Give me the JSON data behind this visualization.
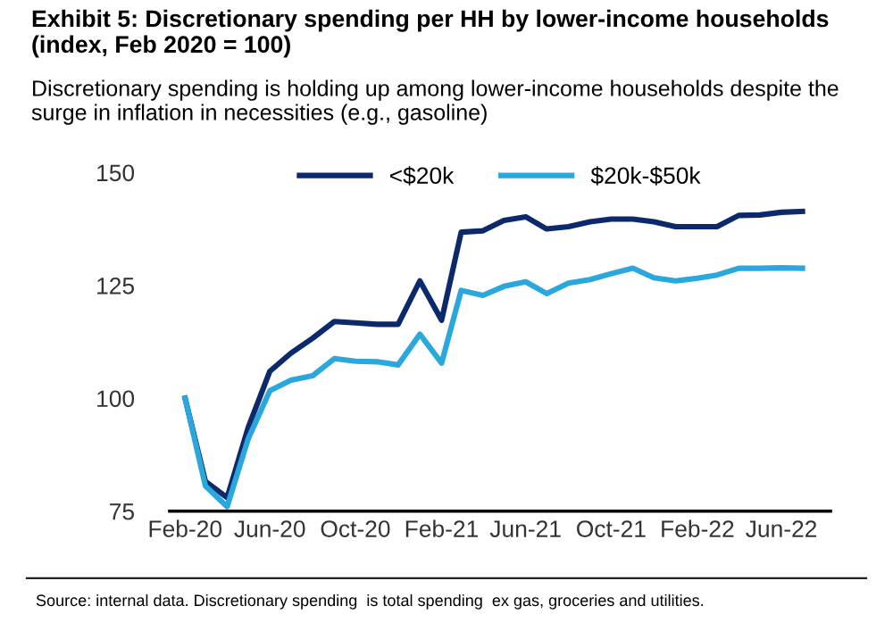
{
  "chart_data": {
    "type": "line",
    "title": "Exhibit 5: Discretionary spending per HH by lower-income households (index, Feb 2020 = 100)",
    "subtitle": "Discretionary spending is holding up among lower-income households despite the surge in inflation in necessities (e.g., gasoline)",
    "annotations": [
      "Source: internal data. Discretionary spending  is total spending  ex gas, groceries and utilities."
    ],
    "x": [
      "2020-02",
      "2020-03",
      "2020-04",
      "2020-05",
      "2020-06",
      "2020-07",
      "2020-08",
      "2020-09",
      "2020-10",
      "2020-11",
      "2020-12",
      "2021-01",
      "2021-02",
      "2021-03",
      "2021-04",
      "2021-05",
      "2021-06",
      "2021-07",
      "2021-08",
      "2021-09",
      "2021-10",
      "2021-11",
      "2021-12",
      "2022-01",
      "2022-02",
      "2022-03",
      "2022-04",
      "2022-05",
      "2022-06",
      "2022-07"
    ],
    "series": [
      {
        "name": "<$20k",
        "color": "#0c2a6b",
        "values": [
          100,
          81.6,
          78,
          93.5,
          106,
          110,
          113.3,
          117,
          116.7,
          116.4,
          116.4,
          126,
          117.3,
          136.8,
          137.1,
          139.4,
          140.2,
          137.5,
          138,
          139.1,
          139.7,
          139.7,
          139.1,
          138,
          138,
          138,
          140.5,
          140.6,
          141.2,
          141.4
        ]
      },
      {
        "name": "$20k-$50k",
        "color": "#2aa7dc",
        "values": [
          100,
          80.6,
          76,
          91,
          101.7,
          104,
          105,
          108.8,
          108.2,
          108.1,
          107.4,
          114.2,
          107.8,
          123.9,
          122.8,
          124.8,
          125.8,
          123.2,
          125.5,
          126.3,
          127.6,
          128.8,
          126.7,
          126,
          126.6,
          127.3,
          128.8,
          128.8,
          128.9,
          128.8
        ]
      }
    ],
    "xlim": [
      "2020-01-10",
      "2022-08-10"
    ],
    "xticks": [
      {
        "value": "2020-02",
        "label": "Feb-20"
      },
      {
        "value": "2020-06",
        "label": "Jun-20"
      },
      {
        "value": "2020-10",
        "label": "Oct-20"
      },
      {
        "value": "2021-02",
        "label": "Feb-21"
      },
      {
        "value": "2021-06",
        "label": "Jun-21"
      },
      {
        "value": "2021-10",
        "label": "Oct-21"
      },
      {
        "value": "2022-02",
        "label": "Feb-22"
      },
      {
        "value": "2022-06",
        "label": "Jun-22"
      }
    ],
    "ylim": [
      75,
      150
    ],
    "yticks": [
      75,
      100,
      125,
      150
    ],
    "grid": false,
    "legend": "top",
    "marker": "none",
    "line_style": "solid"
  }
}
